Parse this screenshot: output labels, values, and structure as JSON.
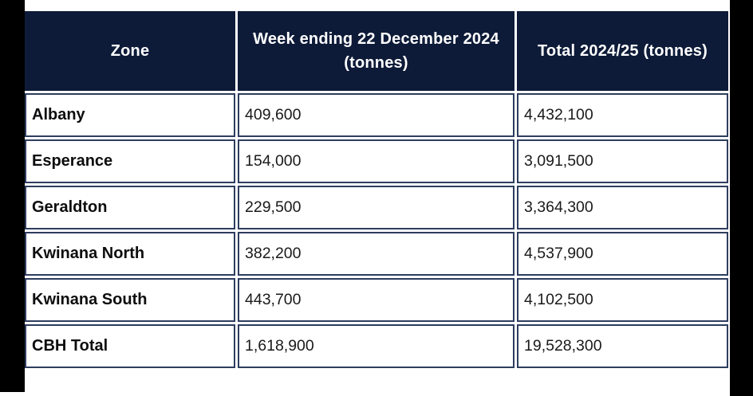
{
  "style": {
    "header_bg": "#0d1b38",
    "cell_border": "#2e3d5e",
    "frame_bar_color": "#000000",
    "header_text_color": "#ffffff"
  },
  "chart_data": {
    "type": "table",
    "columns": [
      "Zone",
      "Week ending 22 December 2024 (tonnes)",
      "Total 2024/25 (tonnes)"
    ],
    "rows": [
      {
        "zone": "Albany",
        "week_tonnes": "409,600",
        "total_tonnes": "4,432,100"
      },
      {
        "zone": "Esperance",
        "week_tonnes": "154,000",
        "total_tonnes": "3,091,500"
      },
      {
        "zone": "Geraldton",
        "week_tonnes": "229,500",
        "total_tonnes": "3,364,300"
      },
      {
        "zone": "Kwinana North",
        "week_tonnes": "382,200",
        "total_tonnes": "4,537,900"
      },
      {
        "zone": "Kwinana South",
        "week_tonnes": "443,700",
        "total_tonnes": "4,102,500"
      },
      {
        "zone": "CBH Total",
        "week_tonnes": "1,618,900",
        "total_tonnes": "19,528,300"
      }
    ]
  }
}
